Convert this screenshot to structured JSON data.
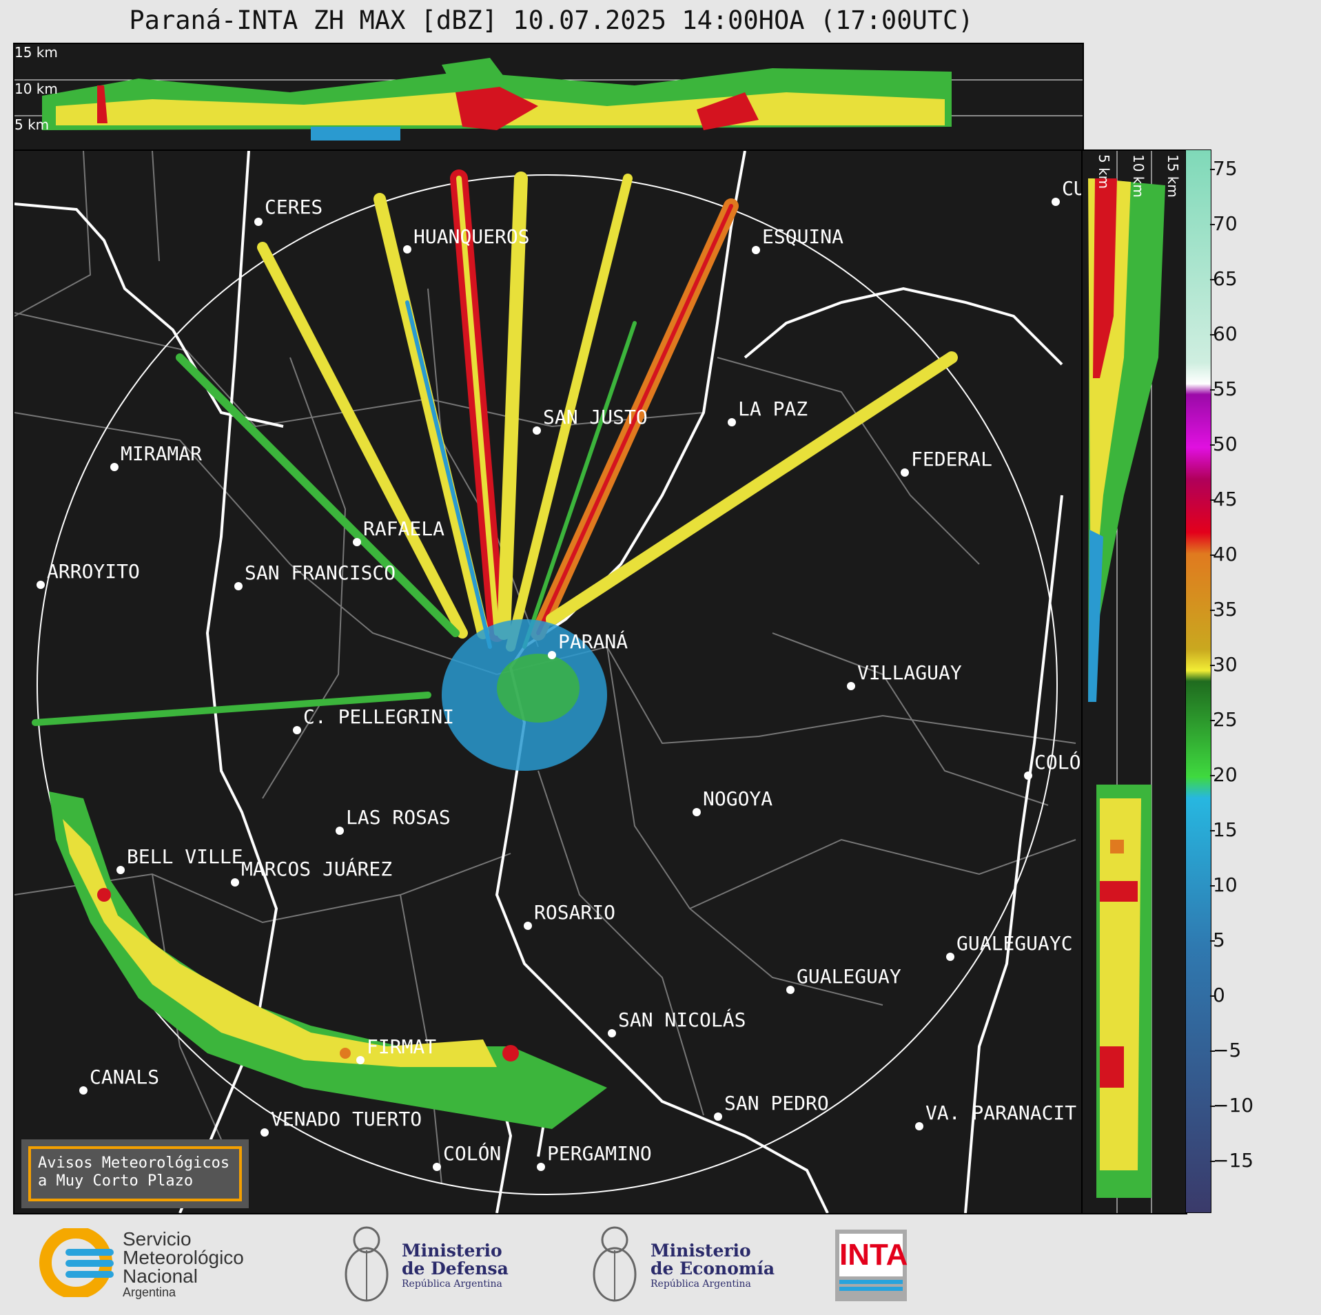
{
  "header": {
    "title": "Paraná-INTA ZH MAX [dBZ] 10.07.2025 14:00HOA (17:00UTC)"
  },
  "top_panel": {
    "height_labels": [
      "15 km",
      "10 km",
      "5 km"
    ]
  },
  "side_panel": {
    "height_labels": [
      "5 km",
      "10 km",
      "15 km"
    ]
  },
  "cities": [
    {
      "name": "CERES"
    },
    {
      "name": "HUANQUEROS"
    },
    {
      "name": "ESQUINA"
    },
    {
      "name": "CU"
    },
    {
      "name": "SAN JUSTO"
    },
    {
      "name": "LA PAZ"
    },
    {
      "name": "MIRAMAR"
    },
    {
      "name": "FEDERAL"
    },
    {
      "name": "RAFAELA"
    },
    {
      "name": "ARROYITO"
    },
    {
      "name": "SAN FRANCISCO"
    },
    {
      "name": "PARANÁ"
    },
    {
      "name": "VILLAGUAY"
    },
    {
      "name": "C. PELLEGRINI"
    },
    {
      "name": "COLÓ"
    },
    {
      "name": "NOGOYA"
    },
    {
      "name": "LAS ROSAS"
    },
    {
      "name": "BELL VILLE"
    },
    {
      "name": "MARCOS JUÁREZ"
    },
    {
      "name": "ROSARIO"
    },
    {
      "name": "GUALEGUAYC"
    },
    {
      "name": "GUALEGUAY"
    },
    {
      "name": "SAN NICOLÁS"
    },
    {
      "name": "FIRMAT"
    },
    {
      "name": "CANALS"
    },
    {
      "name": "SAN PEDRO"
    },
    {
      "name": "VENADO TUERTO"
    },
    {
      "name": "VA. PARANACIT"
    },
    {
      "name": "COLÓN"
    },
    {
      "name": "PERGAMINO"
    }
  ],
  "colorbar": {
    "unit": "dBZ",
    "ticks": [
      "75",
      "70",
      "65",
      "60",
      "55",
      "50",
      "45",
      "40",
      "35",
      "30",
      "25",
      "20",
      "15",
      "10",
      "5",
      "0",
      "−5",
      "−10",
      "−15"
    ],
    "range": [
      -20,
      77
    ]
  },
  "notice": {
    "line1": "Avisos Meteorológicos",
    "line2": "a Muy Corto Plazo"
  },
  "footer": {
    "smn": {
      "line1": "Servicio",
      "line2": "Meteorológico",
      "line3": "Nacional",
      "line4": "Argentina"
    },
    "defensa": {
      "line1": "Ministerio",
      "line2": "de Defensa",
      "line3": "República Argentina"
    },
    "economia": {
      "line1": "Ministerio",
      "line2": "de Economía",
      "line3": "República Argentina"
    },
    "inta": {
      "text": "INTA"
    }
  },
  "colors": {
    "background": "#1a1a1a",
    "accent": "#f5a000",
    "smn_blue": "#29a3dc",
    "smn_yellow": "#f5a800",
    "inta_red": "#e3001b"
  }
}
